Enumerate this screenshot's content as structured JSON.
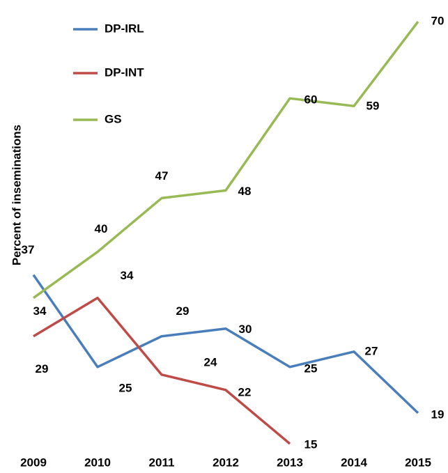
{
  "chart_data": {
    "type": "line",
    "y_label": "Percent of inseminations",
    "x": [
      "2009",
      "2010",
      "2011",
      "2012",
      "2013",
      "2014",
      "2015"
    ],
    "series": [
      {
        "name": "DP-IRL",
        "color": "#4a7ebb",
        "values": [
          37,
          25,
          29,
          30,
          25,
          27,
          19
        ]
      },
      {
        "name": "DP-INT",
        "color": "#be4b48",
        "values": [
          29,
          34,
          24,
          22,
          15,
          null,
          null
        ]
      },
      {
        "name": "GS",
        "color": "#98b954",
        "values": [
          34,
          40,
          47,
          48,
          60,
          59,
          70
        ]
      }
    ],
    "ylim": [
      14,
      71
    ],
    "legend": "upper left"
  }
}
